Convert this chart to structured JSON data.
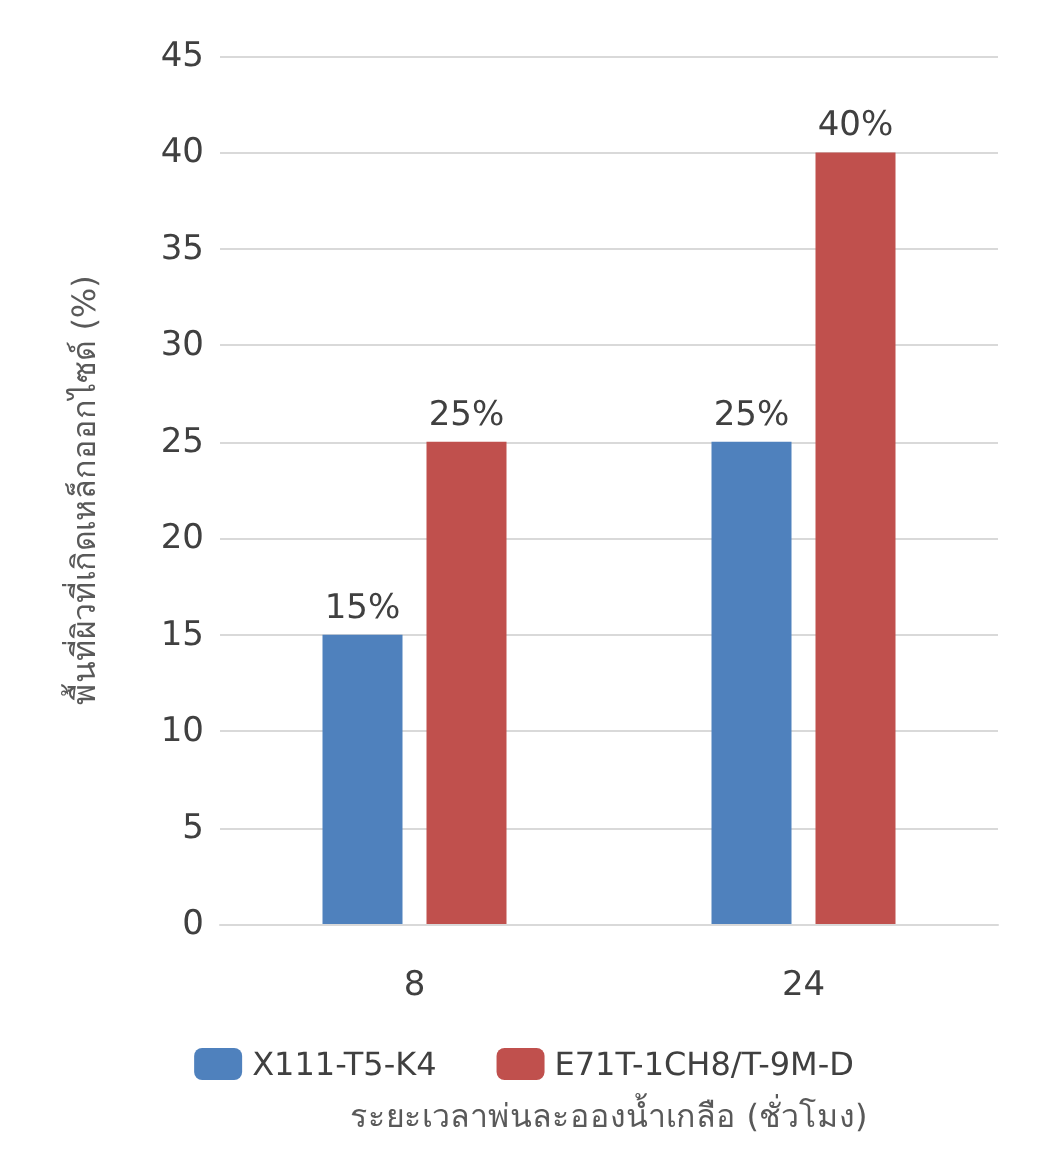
{
  "chart_data": {
    "type": "bar",
    "xlabel": "ระยะเวลาพ่นละอองน้ำเกลือ (ชั่วโมง)",
    "ylabel": "พื้นที่ผิวที่เกิดเหล็กออกไซด์ (%)",
    "categories": [
      "8",
      "24"
    ],
    "series": [
      {
        "name": "X111-T5-K4",
        "color": "#4f81bd",
        "values": [
          15,
          25
        ],
        "value_labels": [
          "15%",
          "25%"
        ]
      },
      {
        "name": "E71T-1CH8/T-9M-D",
        "color": "#c0504d",
        "values": [
          25,
          40
        ],
        "value_labels": [
          "25%",
          "40%"
        ]
      }
    ],
    "ylim": [
      0,
      45
    ],
    "yticks": [
      0,
      5,
      10,
      15,
      20,
      25,
      30,
      35,
      40,
      45
    ],
    "grid": "y",
    "legend": "bottom"
  }
}
